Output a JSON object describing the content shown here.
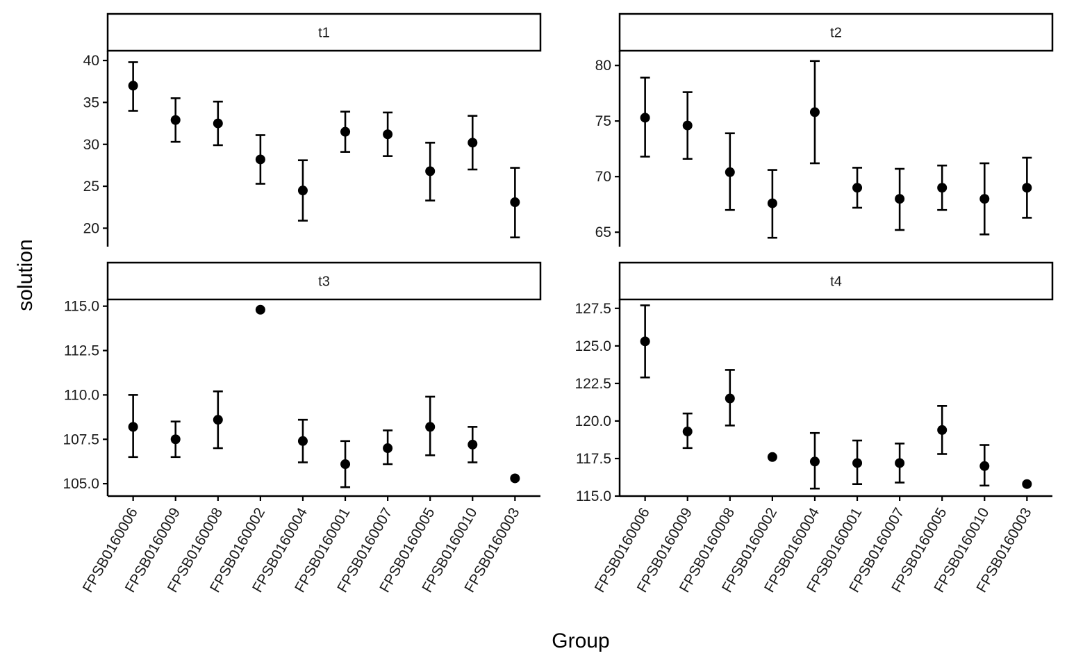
{
  "chart_data": {
    "type": "scatter",
    "facet_layout": "2x2",
    "xlabel": "Group",
    "ylabel": "solution",
    "categories": [
      "FPSB0160006",
      "FPSB0160009",
      "FPSB0160008",
      "FPSB0160002",
      "FPSB0160004",
      "FPSB0160001",
      "FPSB0160007",
      "FPSB0160005",
      "FPSB0160010",
      "FPSB0160003"
    ],
    "grid": false,
    "legend": "none",
    "point_color": "#000000",
    "panels": [
      {
        "strip": "t1",
        "ylim": [
          17.8,
          41.0
        ],
        "yticks": [
          20,
          25,
          30,
          35,
          40
        ],
        "ytick_labels": [
          "20",
          "25",
          "30",
          "35",
          "40"
        ],
        "mean": [
          37.0,
          32.9,
          32.5,
          28.2,
          24.5,
          31.5,
          31.2,
          26.8,
          30.2,
          23.1
        ],
        "lower": [
          34.0,
          30.3,
          29.9,
          25.3,
          20.9,
          29.1,
          28.6,
          23.3,
          27.0,
          18.9
        ],
        "upper": [
          39.8,
          35.5,
          35.1,
          31.1,
          28.1,
          33.9,
          33.8,
          30.2,
          33.4,
          27.2
        ]
      },
      {
        "strip": "t2",
        "ylim": [
          63.7,
          81.2
        ],
        "yticks": [
          65,
          70,
          75,
          80
        ],
        "ytick_labels": [
          "65",
          "70",
          "75",
          "80"
        ],
        "mean": [
          75.3,
          74.6,
          70.4,
          67.6,
          75.8,
          69.0,
          68.0,
          69.0,
          68.0,
          69.0
        ],
        "lower": [
          71.8,
          71.6,
          67.0,
          64.5,
          71.2,
          67.2,
          65.2,
          67.0,
          64.8,
          66.3
        ],
        "upper": [
          78.9,
          77.6,
          73.9,
          70.6,
          80.4,
          70.8,
          70.7,
          71.0,
          71.2,
          71.7
        ]
      },
      {
        "strip": "t3",
        "ylim": [
          104.3,
          115.3
        ],
        "yticks": [
          105.0,
          107.5,
          110.0,
          112.5,
          115.0
        ],
        "ytick_labels": [
          "105.0",
          "107.5",
          "110.0",
          "112.5",
          "115.0"
        ],
        "mean": [
          108.2,
          107.5,
          108.6,
          114.8,
          107.4,
          106.1,
          107.0,
          108.2,
          107.2,
          105.3
        ],
        "lower": [
          106.5,
          106.5,
          107.0,
          null,
          106.2,
          104.8,
          106.1,
          106.6,
          106.2,
          null
        ],
        "upper": [
          110.0,
          108.5,
          110.2,
          null,
          108.6,
          107.4,
          108.0,
          109.9,
          108.2,
          null
        ]
      },
      {
        "strip": "t4",
        "ylim": [
          115.0,
          128.0
        ],
        "yticks": [
          115.0,
          117.5,
          120.0,
          122.5,
          125.0,
          127.5
        ],
        "ytick_labels": [
          "115.0",
          "117.5",
          "120.0",
          "122.5",
          "125.0",
          "127.5"
        ],
        "mean": [
          125.3,
          119.3,
          121.5,
          117.6,
          117.3,
          117.2,
          117.2,
          119.4,
          117.0,
          115.8
        ],
        "lower": [
          122.9,
          118.2,
          119.7,
          null,
          115.5,
          115.8,
          115.9,
          117.8,
          115.7,
          null
        ],
        "upper": [
          127.7,
          120.5,
          123.4,
          null,
          119.2,
          118.7,
          118.5,
          121.0,
          118.4,
          null
        ]
      }
    ]
  }
}
